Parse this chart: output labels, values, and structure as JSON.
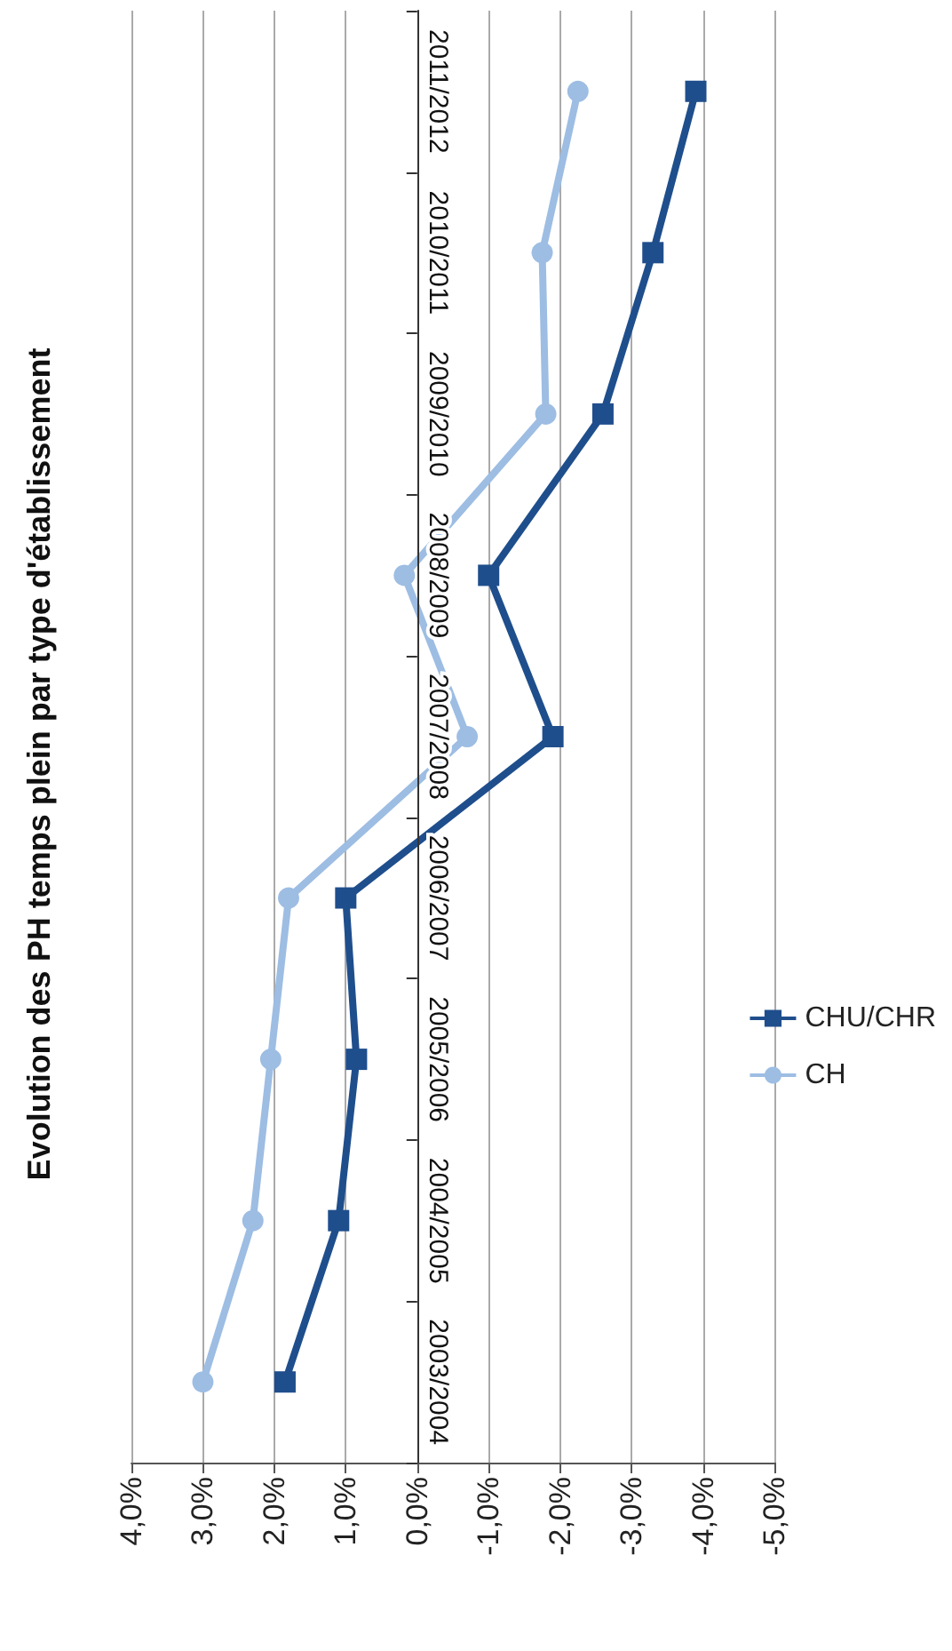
{
  "chart_data": {
    "type": "line",
    "title": "Evolution des PH temps plein par type d'établissement",
    "categories": [
      "2011/2012",
      "2010/2011",
      "2009/2010",
      "2008/2009",
      "2007/2008",
      "2006/2007",
      "2005/2006",
      "2004/2005",
      "2003/2004"
    ],
    "series": [
      {
        "name": "CHU/CHR",
        "color": "#1f4e8c",
        "marker": "square",
        "values": [
          -3.9,
          -3.3,
          -2.6,
          -1.0,
          -1.9,
          1.0,
          0.85,
          1.1,
          1.85
        ]
      },
      {
        "name": "CH",
        "color": "#9dbde3",
        "marker": "circle",
        "values": [
          -2.25,
          -1.75,
          -1.8,
          0.18,
          -0.7,
          1.8,
          2.05,
          2.3,
          3.0
        ]
      }
    ],
    "xlim": [
      4,
      -5
    ],
    "xticks": [
      {
        "value": 4,
        "label": "4,0%"
      },
      {
        "value": 3,
        "label": "3,0%"
      },
      {
        "value": 2,
        "label": "2,0%"
      },
      {
        "value": 1,
        "label": "1,0%"
      },
      {
        "value": 0,
        "label": "0,0%"
      },
      {
        "value": -1,
        "label": "-1,0%"
      },
      {
        "value": -2,
        "label": "-2,0%"
      },
      {
        "value": -3,
        "label": "-3,0%"
      },
      {
        "value": -4,
        "label": "-4,0%"
      },
      {
        "value": -5,
        "label": "-5,0%"
      }
    ],
    "grid": "x",
    "legend": "right",
    "line_style": "solid",
    "orientation": "horizontal"
  }
}
